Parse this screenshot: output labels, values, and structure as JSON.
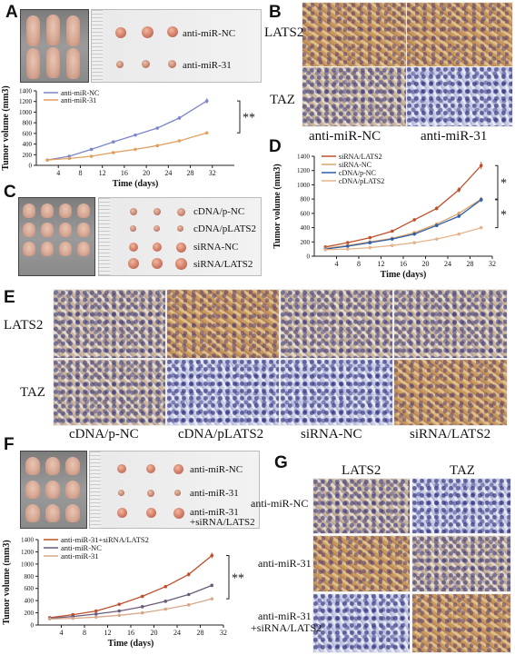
{
  "panels": {
    "A": {
      "letter": "A",
      "photo_labels": [
        "anti-miR-NC",
        "anti-miR-31"
      ],
      "significance": "**"
    },
    "B": {
      "letter": "B",
      "row_labels": [
        "LATS2",
        "TAZ"
      ],
      "col_labels": [
        "anti-miR-NC",
        "anti-miR-31"
      ]
    },
    "C": {
      "letter": "C",
      "photo_labels": [
        "cDNA/p-NC",
        "cDNA/pLATS2",
        "siRNA-NC",
        "siRNA/LATS2"
      ]
    },
    "D": {
      "letter": "D",
      "significance": [
        "*",
        "*"
      ]
    },
    "E": {
      "letter": "E",
      "row_labels": [
        "LATS2",
        "TAZ"
      ],
      "col_labels": [
        "cDNA/p-NC",
        "cDNA/pLATS2",
        "siRNA-NC",
        "siRNA/LATS2"
      ]
    },
    "F": {
      "letter": "F",
      "photo_labels": [
        "anti-miR-NC",
        "anti-miR-31",
        "anti-miR-31",
        "+siRNA/LATS2"
      ],
      "significance": "**"
    },
    "G": {
      "letter": "G",
      "col_labels": [
        "LATS2",
        "TAZ"
      ],
      "row_labels": [
        "anti-miR-NC",
        "anti-miR-31",
        "anti-miR-31",
        "+siRNA/LATS2"
      ]
    }
  },
  "chart_data": [
    {
      "id": "A",
      "type": "line",
      "title": "",
      "xlabel": "Time (days)",
      "ylabel": "Tumor volume (mm3)",
      "xlim": [
        0,
        36
      ],
      "ylim": [
        0,
        1400
      ],
      "xticks": [
        4,
        8,
        12,
        16,
        20,
        24,
        28,
        32
      ],
      "yticks": [
        0,
        200,
        400,
        600,
        800,
        1000,
        1200,
        1400
      ],
      "legend_position": "top-left",
      "x": [
        2,
        6,
        10,
        14,
        18,
        22,
        26,
        31
      ],
      "series": [
        {
          "name": "anti-miR-NC",
          "color": "#7b86c9",
          "values": [
            100,
            170,
            300,
            440,
            570,
            700,
            890,
            1210
          ]
        },
        {
          "name": "anti-miR-31",
          "color": "#e0a060",
          "values": [
            100,
            130,
            170,
            240,
            300,
            370,
            460,
            610
          ]
        }
      ]
    },
    {
      "id": "D",
      "type": "line",
      "title": "",
      "xlabel": "Time (days)",
      "ylabel": "Tumor volume (mm3)",
      "xlim": [
        0,
        32
      ],
      "ylim": [
        0,
        1400
      ],
      "xticks": [
        4,
        8,
        12,
        16,
        20,
        24,
        28,
        32
      ],
      "yticks": [
        0,
        200,
        400,
        600,
        800,
        1000,
        1200,
        1400
      ],
      "legend_position": "top-left",
      "x": [
        2,
        6,
        10,
        14,
        18,
        22,
        26,
        30
      ],
      "series": [
        {
          "name": "siRNA/LATS2",
          "color": "#c0502a",
          "values": [
            130,
            190,
            260,
            350,
            510,
            670,
            930,
            1270
          ]
        },
        {
          "name": "siRNA-NC",
          "color": "#d9a46a",
          "values": [
            110,
            150,
            200,
            250,
            330,
            450,
            600,
            800
          ]
        },
        {
          "name": "cDNA/p-NC",
          "color": "#2f5ea8",
          "values": [
            100,
            140,
            190,
            240,
            310,
            430,
            560,
            790
          ]
        },
        {
          "name": "cDNA/pLATS2",
          "color": "#e6b38a",
          "values": [
            90,
            100,
            120,
            150,
            190,
            240,
            310,
            400
          ]
        }
      ]
    },
    {
      "id": "F",
      "type": "line",
      "title": "",
      "xlabel": "Time (days)",
      "ylabel": "Tumor volume (mm3)",
      "xlim": [
        0,
        32
      ],
      "ylim": [
        0,
        1400
      ],
      "xticks": [
        4,
        8,
        12,
        16,
        20,
        24,
        28,
        32
      ],
      "yticks": [
        0,
        200,
        400,
        600,
        800,
        1000,
        1200,
        1400
      ],
      "legend_position": "top-left",
      "x": [
        2,
        6,
        10,
        14,
        18,
        22,
        26,
        30
      ],
      "series": [
        {
          "name": "anti-miR-31+siRNA/LATS2",
          "color": "#c0502a",
          "values": [
            120,
            170,
            230,
            340,
            470,
            630,
            830,
            1140
          ]
        },
        {
          "name": "anti-miR-NC",
          "color": "#6b5b7b",
          "values": [
            110,
            140,
            180,
            230,
            300,
            390,
            500,
            650
          ]
        },
        {
          "name": "anti-miR-31",
          "color": "#d7a78a",
          "values": [
            100,
            110,
            130,
            160,
            200,
            260,
            330,
            430
          ]
        }
      ]
    }
  ]
}
